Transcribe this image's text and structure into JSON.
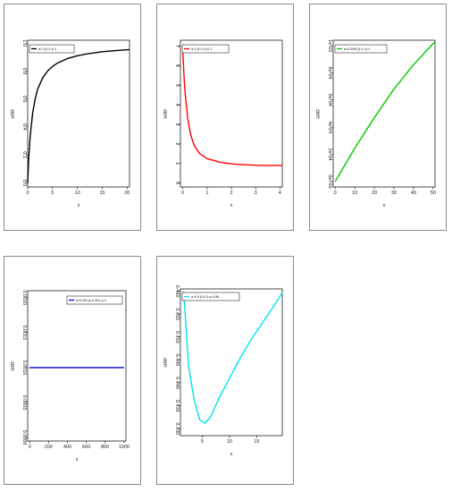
{
  "chart_data": [
    {
      "type": "line",
      "ylabel": "HRF",
      "xlabel": "x",
      "legend": "α=1 β=1 γ=1",
      "color": "#000000",
      "xlim": [
        0,
        20.5
      ],
      "ylim": [
        -0.03,
        1.02
      ],
      "xticks": [
        0,
        5,
        10,
        15,
        20
      ],
      "xtick_labels": [
        "0",
        "5",
        "10",
        "15",
        "20"
      ],
      "yticks": [
        0.0,
        0.2,
        0.4,
        0.6,
        0.8,
        1.0
      ],
      "ytick_labels": [
        "0.0",
        "0.2",
        "0.4",
        "0.6",
        "0.8",
        "1.0"
      ],
      "x": [
        0,
        0.2,
        0.5,
        1,
        1.5,
        2,
        3,
        4,
        5,
        6,
        8,
        10,
        12,
        15,
        18,
        20.5
      ],
      "y": [
        0,
        0.17,
        0.33,
        0.5,
        0.6,
        0.67,
        0.75,
        0.8,
        0.833,
        0.857,
        0.889,
        0.909,
        0.923,
        0.938,
        0.947,
        0.953
      ]
    },
    {
      "type": "line",
      "ylabel": "HRF",
      "xlabel": "x",
      "legend": "α=1 β=3 γ=0.1",
      "color": "#ff0000",
      "xlim": [
        -0.1,
        4.1
      ],
      "ylim": [
        -0.2,
        7.3
      ],
      "xticks": [
        0,
        1,
        2,
        3,
        4
      ],
      "xtick_labels": [
        "0",
        "1",
        "2",
        "3",
        "4"
      ],
      "yticks": [
        0,
        1,
        2,
        3,
        4,
        5,
        6,
        7
      ],
      "ytick_labels": [
        "0",
        "1",
        "2",
        "3",
        "4",
        "5",
        "6",
        "7"
      ],
      "x": [
        0,
        0.05,
        0.1,
        0.2,
        0.3,
        0.4,
        0.5,
        0.7,
        1.0,
        1.5,
        2.0,
        2.5,
        3.0,
        3.5,
        4.1
      ],
      "y": [
        6.7,
        5.4,
        4.5,
        3.3,
        2.6,
        2.15,
        1.85,
        1.5,
        1.25,
        1.07,
        0.98,
        0.94,
        0.91,
        0.9,
        0.9
      ]
    },
    {
      "type": "line",
      "ylabel": "HRF",
      "xlabel": "x",
      "legend": "α=0.0005 β=1 γ=1",
      "color": "#00cc00",
      "xlim": [
        -1,
        51
      ],
      "ylim": [
        -4e-05,
        0.00104
      ],
      "xticks": [
        0,
        10,
        20,
        30,
        40,
        50
      ],
      "xtick_labels": [
        "0",
        "10",
        "20",
        "30",
        "40",
        "50"
      ],
      "yticks": [
        0,
        0.0002,
        0.0004,
        0.0006,
        0.0008,
        0.001
      ],
      "ytick_labels": [
        "0e+00",
        "2e-04",
        "4e-04",
        "6e-04",
        "8e-04",
        "1e-03"
      ],
      "x": [
        0,
        10,
        20,
        30,
        40,
        51
      ],
      "y": [
        0,
        0.000245,
        0.00047,
        0.00068,
        0.00086,
        0.00103
      ]
    },
    {
      "type": "line",
      "ylabel": "HRF",
      "xlabel": "x",
      "legend": "α=0.001 β=0.001 γ=1",
      "color": "#0000cc",
      "xlim": [
        -20,
        1020
      ],
      "ylim": [
        -5e-05,
        0.0021
      ],
      "xticks": [
        0,
        200,
        400,
        600,
        800,
        1000
      ],
      "xtick_labels": [
        "0",
        "200",
        "400",
        "600",
        "800",
        "1000"
      ],
      "yticks": [
        0,
        0.0005,
        0.001,
        0.0015,
        0.002
      ],
      "ytick_labels": [
        "0.0000",
        "0.0005",
        "0.0010",
        "0.0015",
        "0.0020"
      ],
      "x": [
        0,
        1000
      ],
      "y": [
        0.001,
        0.001
      ]
    },
    {
      "type": "line",
      "ylabel": "HRF",
      "xlabel": "x",
      "legend": "α=0.5 β=0.5 γ=0.88",
      "color": "#00e5ee",
      "xlim": [
        1,
        19.7
      ],
      "ylim": [
        0.4285,
        0.4605
      ],
      "xticks": [
        5,
        10,
        15
      ],
      "xtick_labels": [
        "5",
        "10",
        "15"
      ],
      "yticks": [
        0.43,
        0.435,
        0.44,
        0.445,
        0.45,
        0.455,
        0.46
      ],
      "ytick_labels": [
        "0.430",
        "0.435",
        "0.440",
        "0.445",
        "0.450",
        "0.455",
        "0.460"
      ],
      "x": [
        1.6,
        2.5,
        3.5,
        4.5,
        5.5,
        6.5,
        8,
        10,
        12,
        14,
        16,
        18,
        19.7
      ],
      "y": [
        0.46,
        0.4435,
        0.4365,
        0.432,
        0.4312,
        0.4325,
        0.4365,
        0.441,
        0.4455,
        0.4495,
        0.453,
        0.4565,
        0.4597
      ]
    }
  ]
}
